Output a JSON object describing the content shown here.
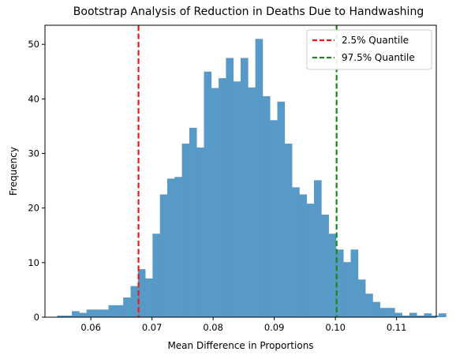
{
  "chart_data": {
    "type": "bar",
    "subtype": "histogram",
    "title": "Bootstrap Analysis of Reduction in Deaths Due to Handwashing",
    "xlabel": "Mean Difference in Proportions",
    "ylabel": "Frequency",
    "xlim": [
      0.0525,
      0.1165
    ],
    "ylim": [
      0,
      53.5
    ],
    "xticks": [
      0.06,
      0.07,
      0.08,
      0.09,
      0.1,
      0.11
    ],
    "xtick_labels": [
      "0.06",
      "0.07",
      "0.08",
      "0.09",
      "0.10",
      "0.11"
    ],
    "yticks": [
      0,
      10,
      20,
      30,
      40,
      50
    ],
    "ytick_labels": [
      "0",
      "10",
      "20",
      "30",
      "40",
      "50"
    ],
    "grid": false,
    "bar_color": "#5799c7",
    "bins": {
      "start": 0.0545,
      "width": 0.0012,
      "counts": [
        0.3,
        0.3,
        1.1,
        0.8,
        1.4,
        1.4,
        1.4,
        2.2,
        2.2,
        3.6,
        5.7,
        8.8,
        7.1,
        15.3,
        22.5,
        25.4,
        25.7,
        31.8,
        34.7,
        31.1,
        45.0,
        42.0,
        43.8,
        47.5,
        43.2,
        47.5,
        42.1,
        51.0,
        40.5,
        36.1,
        39.5,
        31.8,
        23.8,
        22.5,
        20.8,
        25.1,
        18.8,
        15.3,
        12.4,
        10.1,
        12.4,
        6.9,
        4.3,
        2.8,
        1.7,
        1.7,
        0.8,
        0.3,
        0.8,
        0.3,
        0.7,
        0.3,
        0.7
      ]
    },
    "quantile_lines": [
      {
        "name": "2.5% Quantile",
        "x": 0.0678,
        "color": "#e41a1c"
      },
      {
        "name": "97.5% Quantile",
        "x": 0.1002,
        "color": "#168c16"
      }
    ],
    "legend_position": "top-right"
  }
}
